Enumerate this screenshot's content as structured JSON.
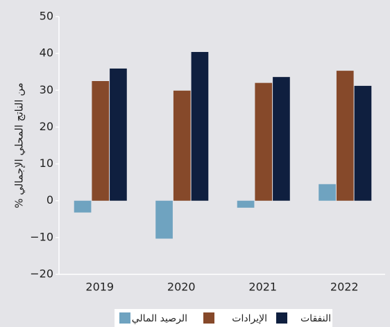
{
  "chart_data": {
    "type": "bar",
    "y_label": "% من الناتج المحلي الإجمالي",
    "categories": [
      "2019",
      "2020",
      "2021",
      "2022"
    ],
    "series": [
      {
        "name": "الرصيد المالي",
        "color": "#6fa3c0",
        "values": [
          -3.2,
          -10.3,
          -1.9,
          4.5
        ]
      },
      {
        "name": "الإيرادات",
        "color": "#86492a",
        "values": [
          32.5,
          29.9,
          32,
          35.3
        ]
      },
      {
        "name": "النفقات",
        "color": "#0f1f3f",
        "values": [
          35.9,
          40.4,
          33.6,
          31.2
        ]
      }
    ],
    "ylim": [
      -20,
      50
    ],
    "yticks": [
      {
        "value": -20,
        "label": "−20"
      },
      {
        "value": -10,
        "label": "−10"
      },
      0,
      10,
      20,
      30,
      40,
      50
    ],
    "grid": false
  }
}
